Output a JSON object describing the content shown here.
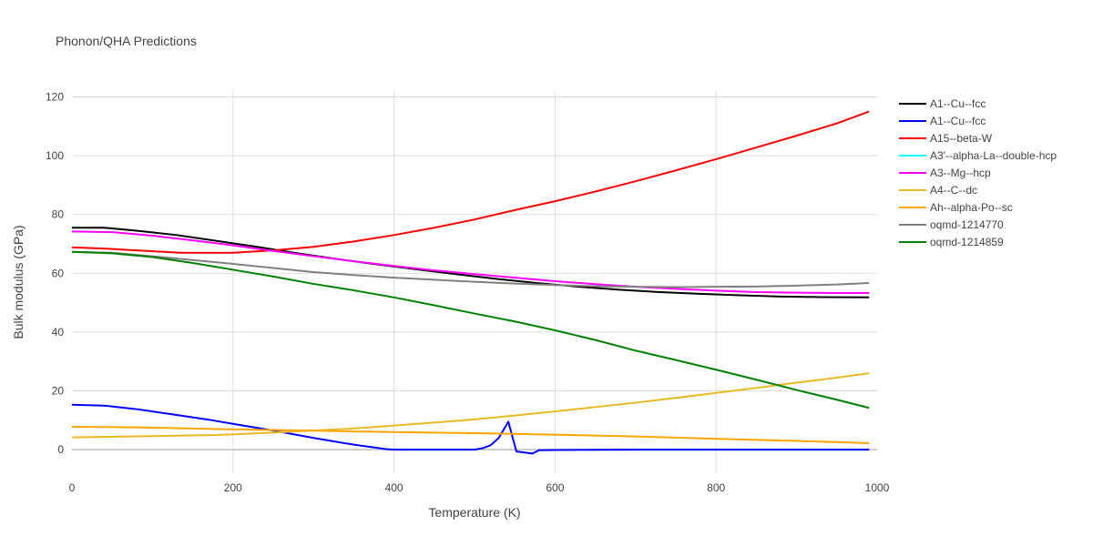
{
  "chart_data": {
    "type": "line",
    "title": "Phonon/QHA Predictions",
    "xlabel": "Temperature (K)",
    "ylabel": "Bulk modulus (GPa)",
    "xlim": [
      0,
      1000
    ],
    "ylim": [
      -8,
      122
    ],
    "xticks": [
      0,
      200,
      400,
      600,
      800,
      1000
    ],
    "yticks": [
      0,
      20,
      40,
      60,
      80,
      100,
      120
    ],
    "grid": true,
    "legend_position": "right",
    "series": [
      {
        "name": "A1--Cu--fcc",
        "color": "#000000",
        "x": [
          0,
          40,
          80,
          130,
          180,
          230,
          280,
          330,
          380,
          430,
          480,
          530,
          580,
          630,
          680,
          730,
          780,
          830,
          880,
          930,
          990
        ],
        "y": [
          75.5,
          75.5,
          74.5,
          73,
          71,
          69,
          66.8,
          64.8,
          63,
          61.3,
          59.6,
          58,
          56.6,
          55.4,
          54.4,
          53.6,
          53,
          52.5,
          52.1,
          51.9,
          51.8
        ]
      },
      {
        "name": "A1--Cu--fcc",
        "color": "#0000ff",
        "x": [
          0,
          40,
          80,
          130,
          170,
          200,
          250,
          300,
          350,
          390,
          400,
          420,
          500,
          510,
          520,
          530,
          542,
          552,
          572,
          580,
          600,
          700,
          800,
          900,
          990
        ],
        "y": [
          15.3,
          15,
          13.8,
          11.8,
          10.2,
          8.8,
          6.5,
          4,
          1.7,
          0.2,
          0,
          0,
          0,
          0.5,
          1.5,
          4,
          9.5,
          -0.6,
          -1.3,
          -0.2,
          -0.1,
          0,
          0,
          0,
          0
        ]
      },
      {
        "name": "A15--beta-W",
        "color": "#ff0000",
        "x": [
          0,
          40,
          80,
          135,
          200,
          250,
          300,
          350,
          400,
          450,
          500,
          550,
          600,
          650,
          700,
          750,
          800,
          850,
          900,
          950,
          990
        ],
        "y": [
          68.8,
          68.4,
          67.8,
          67,
          67,
          67.8,
          69,
          70.8,
          73,
          75.5,
          78.3,
          81.5,
          84.5,
          87.8,
          91.3,
          95,
          98.8,
          102.8,
          106.8,
          111,
          115
        ]
      },
      {
        "name": "A3'--alpha-La--double-hcp",
        "color": "#00ffff",
        "x": [],
        "y": []
      },
      {
        "name": "A3--Mg--hcp",
        "color": "#ff00ff",
        "x": [
          0,
          50,
          100,
          150,
          200,
          250,
          300,
          350,
          400,
          450,
          500,
          550,
          600,
          650,
          700,
          750,
          800,
          850,
          900,
          950,
          990
        ],
        "y": [
          74.2,
          74,
          72.8,
          71.2,
          69.5,
          67.6,
          65.8,
          64.1,
          62.5,
          61,
          59.7,
          58.5,
          57.3,
          56.3,
          55.4,
          54.7,
          54.1,
          53.6,
          53.4,
          53.3,
          53.3
        ]
      },
      {
        "name": "A4--C--dc",
        "color": "#e8b923",
        "x": [
          0,
          100,
          180,
          250,
          300,
          350,
          400,
          450,
          500,
          550,
          600,
          650,
          700,
          750,
          800,
          850,
          900,
          950,
          990
        ],
        "y": [
          4.2,
          4.6,
          5,
          5.8,
          6.5,
          7.2,
          8.2,
          9.2,
          10.3,
          11.6,
          13,
          14.5,
          16,
          17.6,
          19.3,
          21,
          22.8,
          24.5,
          26
        ]
      },
      {
        "name": "Ah--alpha-Po--sc",
        "color": "#ffa500",
        "x": [
          0,
          80,
          150,
          200,
          280,
          350,
          400,
          500,
          600,
          700,
          800,
          900,
          990
        ],
        "y": [
          7.8,
          7.6,
          7.2,
          6.9,
          6.6,
          6.2,
          6,
          5.6,
          5.1,
          4.5,
          3.7,
          3,
          2.2
        ]
      },
      {
        "name": "oqmd-1214770",
        "color": "#808080",
        "x": [
          0,
          50,
          100,
          150,
          200,
          250,
          300,
          350,
          400,
          450,
          500,
          550,
          600,
          650,
          700,
          750,
          800,
          850,
          900,
          950,
          990
        ],
        "y": [
          67.3,
          67,
          65.8,
          64.5,
          63.2,
          61.8,
          60.4,
          59.4,
          58.5,
          57.8,
          57.1,
          56.5,
          56,
          55.6,
          55.4,
          55.3,
          55.4,
          55.5,
          55.8,
          56.2,
          56.7
        ]
      },
      {
        "name": "oqmd-1214859",
        "color": "#008000",
        "x": [
          0,
          50,
          100,
          150,
          200,
          250,
          300,
          350,
          400,
          450,
          500,
          550,
          600,
          650,
          700,
          750,
          800,
          850,
          900,
          950,
          990
        ],
        "y": [
          67.3,
          66.8,
          65.5,
          63.5,
          61.2,
          58.9,
          56.4,
          54.2,
          51.8,
          49.1,
          46.3,
          43.6,
          40.6,
          37.3,
          33.7,
          30.5,
          27.2,
          23.8,
          20.3,
          17,
          14.2
        ]
      }
    ]
  }
}
